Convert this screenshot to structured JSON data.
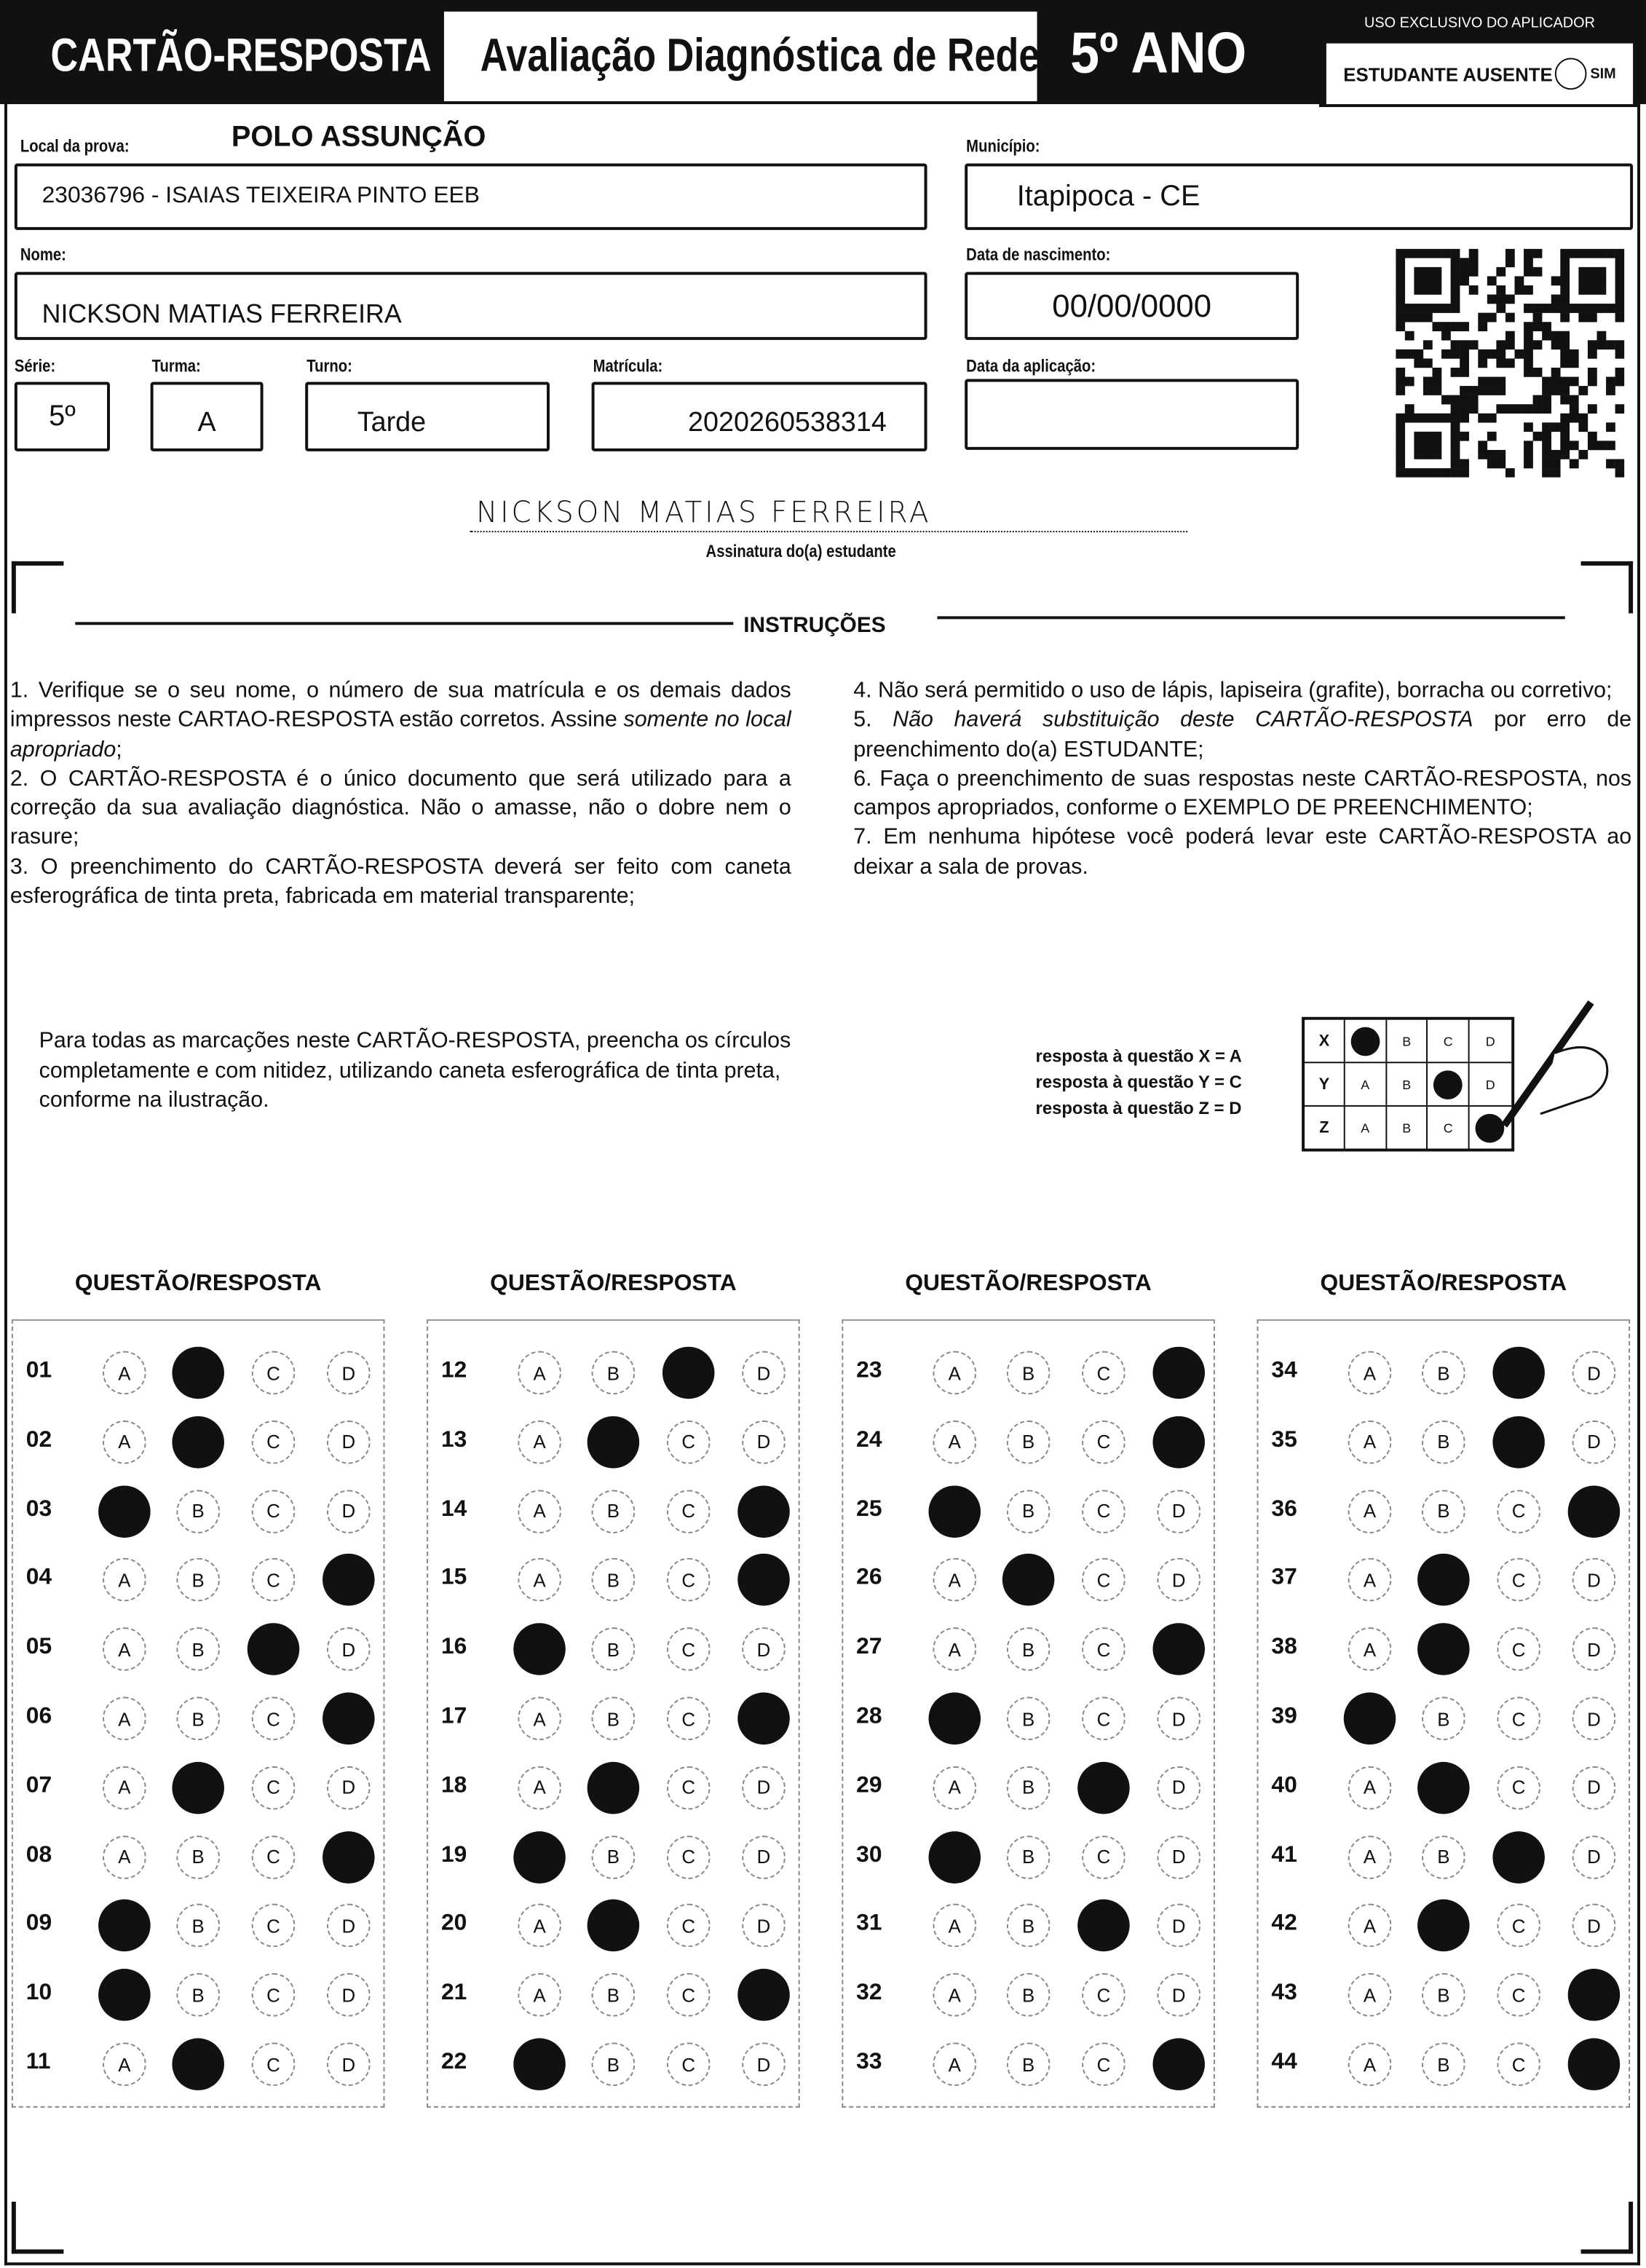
{
  "header": {
    "card_title": "CARTÃO-RESPOSTA",
    "exam_title": "Avaliação Diagnóstica de Rede",
    "grade": "5º ANO",
    "applicator_label": "USO EXCLUSIVO DO APLICADOR",
    "absent_label": "ESTUDANTE AUSENTE",
    "absent_option": "SIM",
    "absent_marked": false
  },
  "fields": {
    "local_label": "Local da prova:",
    "local_value": "POLO ASSUNÇÃO",
    "school_value": "23036796 - ISAIAS TEIXEIRA PINTO EEB",
    "municipio_label": "Município:",
    "municipio_value": "Itapipoca - CE",
    "nome_label": "Nome:",
    "nome_value": "NICKSON MATIAS FERREIRA",
    "nascimento_label": "Data de nascimento:",
    "nascimento_value": "00/00/0000",
    "serie_label": "Série:",
    "serie_value": "5º",
    "turma_label": "Turma:",
    "turma_value": "A",
    "turno_label": "Turno:",
    "turno_value": "Tarde",
    "matricula_label": "Matrícula:",
    "matricula_value": "2020260538314",
    "aplicacao_label": "Data da aplicação:",
    "aplicacao_value": ""
  },
  "signature": {
    "handwritten": "NICKSON MATIAS FERREIRA",
    "label": "Assinatura do(a) estudante"
  },
  "instructions": {
    "title": "INSTRUÇÕES",
    "left": [
      "1. Verifique se o seu nome, o número de sua matrícula e os demais dados impressos neste CARTAO-RESPOSTA estão corretos. Assine ",
      "somente no local apropriado",
      ";",
      "2. O CARTÃO-RESPOSTA é o único documento que será utilizado para a correção da sua avaliação diagnóstica. Não o amasse, não o dobre nem o rasure;",
      "3. O preenchimento do CARTÃO-RESPOSTA deverá ser feito com caneta esferográfica de tinta preta, fabricada em material transparente;"
    ],
    "right": [
      "4. Não será permitido o uso de lápis, lapiseira (grafite), borracha ou corretivo;",
      "5. ",
      "Não haverá substituição deste CARTÃO-RESPOSTA",
      " por erro de preenchimento do(a) ESTUDANTE;",
      "6. Faça o preenchimento de suas respostas neste CARTÃO-RESPOSTA, nos campos apropriados, conforme o EXEMPLO DE PREENCHIMENTO;",
      "7. Em nenhuma hipótese você poderá levar este CARTÃO-RESPOSTA ao deixar a sala de provas."
    ]
  },
  "example": {
    "text": "Para todas as marcações neste CARTÃO-RESPOSTA, preencha os círculos completamente e com nitidez, utilizando caneta esferográfica de tinta preta, conforme na ilustração.",
    "legend": [
      "resposta à questão X = A",
      "resposta à questão Y = C",
      "resposta à questão Z = D"
    ],
    "rows": [
      {
        "q": "X",
        "marked": "A"
      },
      {
        "q": "Y",
        "marked": "C"
      },
      {
        "q": "Z",
        "marked": "D"
      }
    ]
  },
  "answers": {
    "column_header": "QUESTÃO/RESPOSTA",
    "options": [
      "A",
      "B",
      "C",
      "D"
    ],
    "columns": [
      [
        [
          "01",
          "B"
        ],
        [
          "02",
          "B"
        ],
        [
          "03",
          "A"
        ],
        [
          "04",
          "D"
        ],
        [
          "05",
          "C"
        ],
        [
          "06",
          "D"
        ],
        [
          "07",
          "B"
        ],
        [
          "08",
          "D"
        ],
        [
          "09",
          "A"
        ],
        [
          "10",
          "A"
        ],
        [
          "11",
          "B"
        ]
      ],
      [
        [
          "12",
          "C"
        ],
        [
          "13",
          "B"
        ],
        [
          "14",
          "D"
        ],
        [
          "15",
          "D"
        ],
        [
          "16",
          "A"
        ],
        [
          "17",
          "D"
        ],
        [
          "18",
          "B"
        ],
        [
          "19",
          "A"
        ],
        [
          "20",
          "B"
        ],
        [
          "21",
          "D"
        ],
        [
          "22",
          "A"
        ]
      ],
      [
        [
          "23",
          "D"
        ],
        [
          "24",
          "D"
        ],
        [
          "25",
          "A"
        ],
        [
          "26",
          "B"
        ],
        [
          "27",
          "D"
        ],
        [
          "28",
          "A"
        ],
        [
          "29",
          "C"
        ],
        [
          "30",
          "A"
        ],
        [
          "31",
          "C"
        ],
        [
          "32",
          ""
        ],
        [
          "33",
          "D"
        ]
      ],
      [
        [
          "34",
          "C"
        ],
        [
          "35",
          "C"
        ],
        [
          "36",
          "D"
        ],
        [
          "37",
          "B"
        ],
        [
          "38",
          "B"
        ],
        [
          "39",
          "A"
        ],
        [
          "40",
          "B"
        ],
        [
          "41",
          "C"
        ],
        [
          "42",
          "B"
        ],
        [
          "43",
          "D"
        ],
        [
          "44",
          "D"
        ]
      ]
    ]
  }
}
